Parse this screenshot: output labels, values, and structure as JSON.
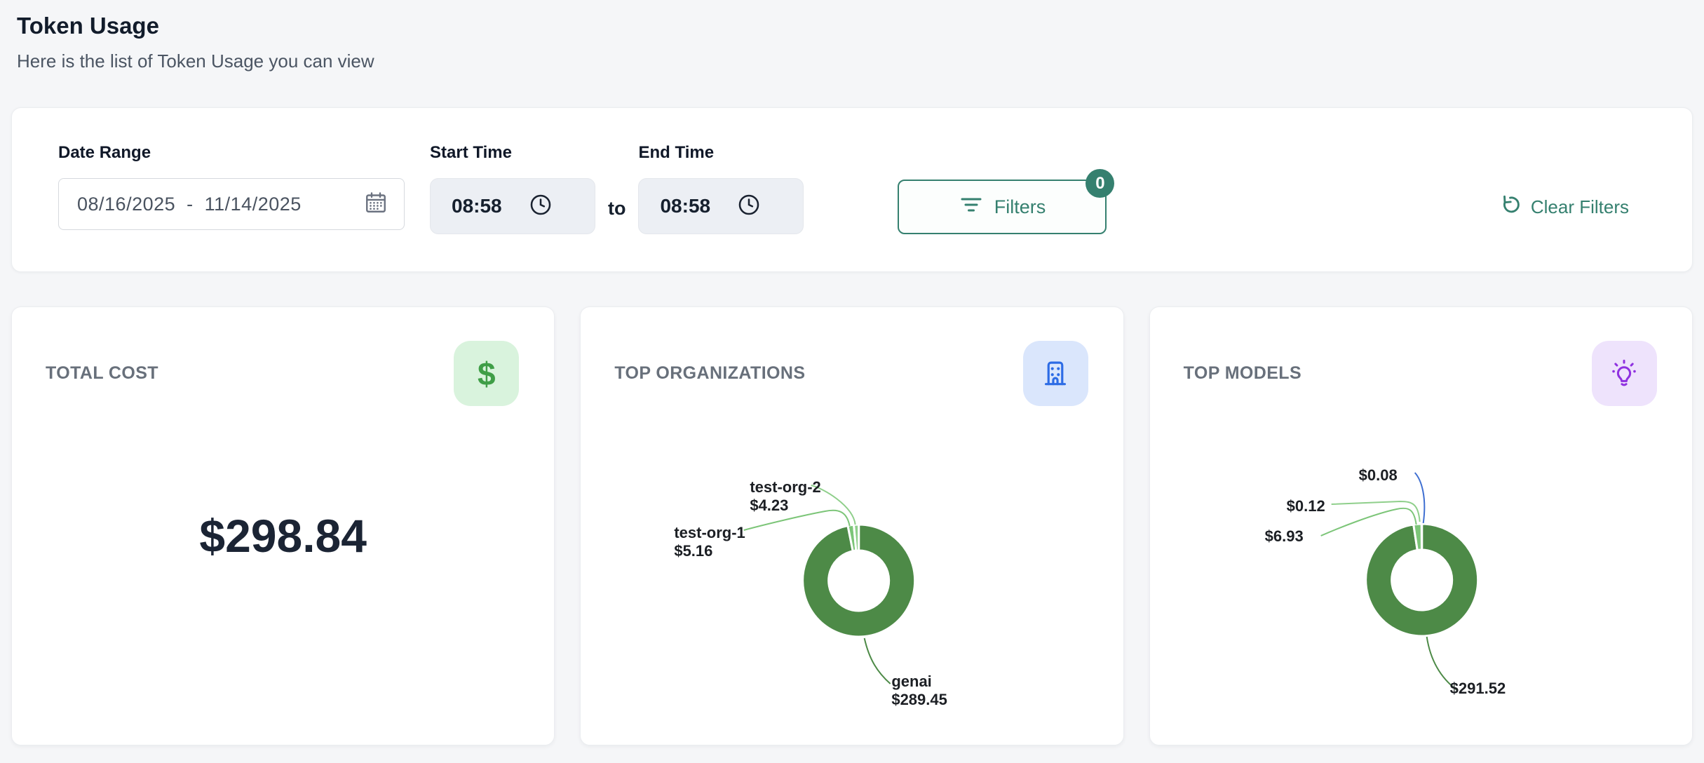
{
  "page": {
    "title": "Token Usage",
    "subtitle": "Here is the list of Token Usage you can view"
  },
  "filters": {
    "date_range": {
      "label": "Date Range",
      "value": "08/16/2025  -  11/14/2025"
    },
    "start_time": {
      "label": "Start Time",
      "value": "08:58"
    },
    "to_label": "to",
    "end_time": {
      "label": "End Time",
      "value": "08:58"
    },
    "filters_button": {
      "label": "Filters",
      "badge": "0"
    },
    "clear_filters_label": "Clear Filters"
  },
  "cards": {
    "total_cost": {
      "title": "TOTAL COST",
      "value": "$298.84",
      "icon": "dollar-icon",
      "icon_text": "$"
    },
    "top_organizations": {
      "title": "TOP ORGANIZATIONS",
      "icon": "building-icon"
    },
    "top_models": {
      "title": "TOP MODELS",
      "icon": "lightbulb-icon"
    }
  },
  "colors": {
    "accent_teal": "#35806f",
    "pie_dark_green": "#4d8a47",
    "pie_medium_green": "#7cc578",
    "pie_light_green": "#8fcf8b",
    "pie_blue": "#3f6fd1",
    "tile_green_bg": "#d9f3dd",
    "tile_blue_bg": "#dae6fc",
    "tile_purple_bg": "#eee3fc",
    "page_bg": "#f5f6f8"
  },
  "chart_data": [
    {
      "type": "pie",
      "donut": true,
      "title": "TOP ORGANIZATIONS",
      "legend_position": "none",
      "series": [
        {
          "name": "genai",
          "value": 289.45,
          "value_label": "$289.45",
          "color": "#4d8a47"
        },
        {
          "name": "test-org-1",
          "value": 5.16,
          "value_label": "$5.16",
          "color": "#7cc578"
        },
        {
          "name": "test-org-2",
          "value": 4.23,
          "value_label": "$4.23",
          "color": "#8fcf8b"
        }
      ]
    },
    {
      "type": "pie",
      "donut": true,
      "title": "TOP MODELS",
      "legend_position": "none",
      "series": [
        {
          "name": "",
          "value": 291.52,
          "value_label": "$291.52",
          "color": "#4d8a47"
        },
        {
          "name": "",
          "value": 6.93,
          "value_label": "$6.93",
          "color": "#7cc578"
        },
        {
          "name": "",
          "value": 0.12,
          "value_label": "$0.12",
          "color": "#8fcf8b"
        },
        {
          "name": "",
          "value": 0.08,
          "value_label": "$0.08",
          "color": "#3f6fd1"
        }
      ]
    }
  ]
}
